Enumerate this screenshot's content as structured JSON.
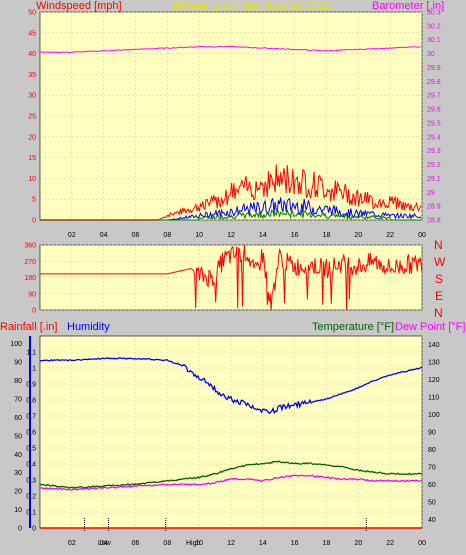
{
  "header": {
    "windspeed_title": "Windspeed [mph]",
    "graph_title": "24 hour graph day   June 24 2022",
    "barometer_title": "Barometer [.in]",
    "rainfall_title": "Rainfall [.in]",
    "humidity_title": "Humidity",
    "temperature_title": "Temperature [°F]",
    "dewpoint_title": "Dew Point [°F]"
  },
  "compass": [
    "N",
    "W",
    "S",
    "E",
    "N"
  ],
  "hilo": {
    "low": "Low",
    "high": "High"
  },
  "colors": {
    "plot_bg": "#ffffc0",
    "frame_bg": "#c8c8c8",
    "wind": "#ff0000",
    "wind_avg": "#0000ff",
    "wind_green": "#008000",
    "barometer": "#ff00ff",
    "humidity": "#0000ff",
    "temperature": "#006400",
    "dewpoint": "#ff00ff",
    "direction": "#ff0000",
    "rain_axis": "#0000ff",
    "axis_red": "#ff0000"
  },
  "chart_data": [
    {
      "type": "line",
      "name": "wind",
      "title": "24 hour graph day   June 24 2022",
      "x_ticks": [
        "02",
        "04",
        "06",
        "08",
        "10",
        "12",
        "14",
        "16",
        "18",
        "20",
        "22",
        "00"
      ],
      "ylabel": "Windspeed [mph]",
      "ylim": [
        0,
        50
      ],
      "y_ticks": [
        0,
        5,
        10,
        15,
        20,
        25,
        30,
        35,
        40,
        45,
        50
      ],
      "y2label": "Barometer [.in]",
      "y2lim": [
        28.8,
        30.3
      ],
      "y2_ticks": [
        "28.8",
        "28.9",
        "29",
        "29.1",
        "29.2",
        "29.3",
        "29.4",
        "29.5",
        "29.6",
        "29.7",
        "29.8",
        "29.9",
        "30",
        "30.1",
        "30.2",
        "30.3"
      ],
      "series": [
        {
          "name": "gust",
          "x": [
            0,
            2,
            4,
            6,
            7.4,
            8,
            9,
            10,
            11,
            12,
            13,
            14,
            15,
            16,
            17,
            18,
            19,
            20,
            21,
            22,
            23,
            24
          ],
          "y": [
            0,
            0,
            0,
            0,
            0,
            1,
            2,
            3,
            4,
            6,
            7,
            8,
            9,
            9,
            8,
            7,
            6,
            5,
            4,
            4,
            3,
            3
          ]
        },
        {
          "name": "average",
          "x": [
            0,
            2,
            4,
            6,
            8,
            9,
            10,
            11,
            12,
            13,
            14,
            15,
            16,
            17,
            18,
            19,
            20,
            21,
            22,
            23,
            24
          ],
          "y": [
            0,
            0,
            0,
            0,
            0,
            0.5,
            1,
            1.5,
            2,
            2.5,
            3,
            3.5,
            3.5,
            3,
            2.5,
            2,
            1.5,
            1.5,
            1,
            1,
            1
          ]
        },
        {
          "name": "barometer",
          "x": [
            0,
            2,
            4,
            6,
            8,
            10,
            12,
            14,
            16,
            18,
            20,
            22,
            24
          ],
          "y": [
            30.01,
            30.01,
            30.02,
            30.03,
            30.04,
            30.05,
            30.05,
            30.04,
            30.03,
            30.02,
            30.03,
            30.04,
            30.05
          ]
        }
      ]
    },
    {
      "type": "line",
      "name": "direction",
      "ylim": [
        0,
        360
      ],
      "y_ticks": [
        0,
        90,
        180,
        270,
        360
      ],
      "x": [
        0,
        4,
        8,
        9.5,
        10,
        11,
        11.5,
        12,
        13,
        13.5,
        14,
        14.5,
        15,
        16,
        17,
        18,
        19,
        20,
        21,
        22,
        23,
        24
      ],
      "y": [
        200,
        200,
        200,
        230,
        190,
        180,
        280,
        300,
        320,
        200,
        310,
        20,
        290,
        240,
        250,
        230,
        260,
        240,
        270,
        230,
        250,
        260
      ]
    },
    {
      "type": "line",
      "name": "temperature-humidity",
      "x_ticks": [
        "02",
        "04",
        "06",
        "08",
        "10",
        "12",
        "14",
        "16",
        "18",
        "20",
        "22",
        "00"
      ],
      "ylabel": "Rainfall [.in]",
      "ylim": [
        0,
        1.2
      ],
      "y_ticks": [
        "0",
        "0.1",
        "0.2",
        "0.3",
        "0.4",
        "0.5",
        "0.6",
        "0.7",
        "0.8",
        "0.9",
        "1",
        "1.1"
      ],
      "humidity_ticks": [
        "0",
        "10",
        "20",
        "30",
        "40",
        "50",
        "60",
        "70",
        "80",
        "90",
        "100"
      ],
      "humidity_lim": [
        0,
        100
      ],
      "y2label": "Temperature [°F]",
      "y2lim": [
        35,
        145
      ],
      "y2_ticks": [
        "40",
        "50",
        "60",
        "70",
        "80",
        "90",
        "100",
        "110",
        "120",
        "130",
        "140"
      ],
      "series": [
        {
          "name": "Humidity",
          "x": [
            0,
            2,
            4,
            6,
            8,
            9,
            10,
            11,
            12,
            13,
            14,
            14.5,
            15,
            16,
            17,
            18,
            19,
            20,
            21,
            22,
            23,
            24
          ],
          "y": [
            91,
            91,
            92,
            92,
            91,
            88,
            82,
            75,
            70,
            67,
            63,
            63,
            65,
            67,
            68,
            70,
            73,
            76,
            80,
            83,
            85,
            87
          ]
        },
        {
          "name": "Temperature",
          "x": [
            0,
            2,
            4,
            6,
            8,
            10,
            11,
            12,
            13,
            14,
            15,
            16,
            17,
            18,
            19,
            20,
            21,
            22,
            23,
            24
          ],
          "y": [
            60,
            58,
            59,
            60,
            62,
            64,
            66,
            69,
            71,
            72,
            73,
            72,
            72,
            71,
            70,
            68,
            67,
            66,
            66,
            66
          ]
        },
        {
          "name": "Dew Point",
          "x": [
            0,
            2,
            4,
            6,
            8,
            10,
            11,
            12,
            13,
            14,
            15,
            16,
            17,
            18,
            19,
            20,
            21,
            22,
            23,
            24
          ],
          "y": [
            58,
            57,
            58,
            59,
            60,
            60,
            61,
            63,
            63,
            62,
            64,
            65,
            65,
            64,
            63,
            63,
            62,
            62,
            62,
            62
          ]
        }
      ]
    }
  ]
}
